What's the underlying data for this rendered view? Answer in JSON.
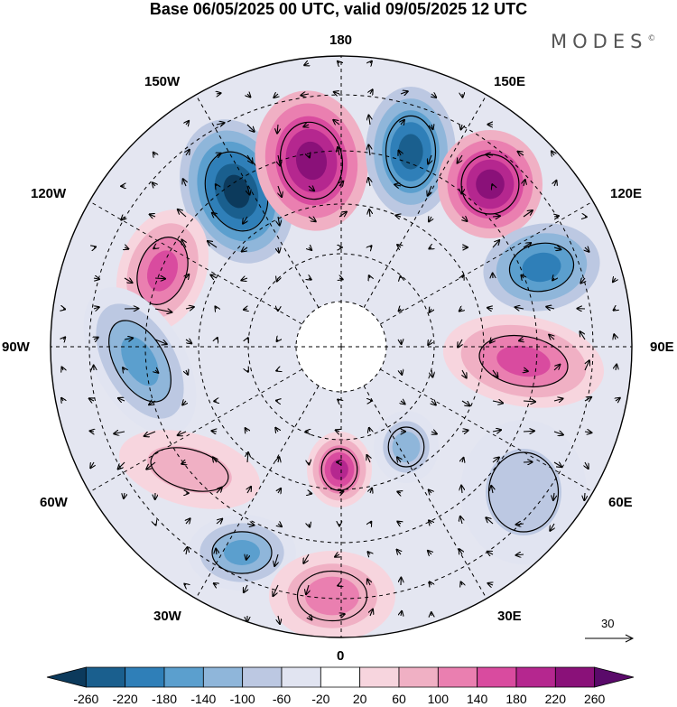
{
  "title": "Base 06/05/2025 00 UTC, valid 09/05/2025 12 UTC",
  "logo": "MODES",
  "logo_mark": "©",
  "longitude_labels": {
    "n180": "180",
    "w150": "150W",
    "e150": "150E",
    "w120": "120W",
    "e120": "120E",
    "w90": "90W",
    "e90": "90E",
    "w60": "60W",
    "e60": "60E",
    "w30": "30W",
    "e30": "30E",
    "s0": "0"
  },
  "reference_vector": "30",
  "colorbar": {
    "labels": [
      "-260",
      "-220",
      "-180",
      "-140",
      "-100",
      "-60",
      "-20",
      "20",
      "60",
      "100",
      "140",
      "180",
      "220",
      "260"
    ],
    "colors": [
      "#0c3a5c",
      "#1a5f8e",
      "#2f7fb8",
      "#5b9fce",
      "#8fb6da",
      "#bcc8e2",
      "#e1e4f1",
      "#ffffff",
      "#f7d5de",
      "#f0b0c4",
      "#ea7fb0",
      "#d94b9f",
      "#b5278f",
      "#8a1179",
      "#5a0a6a"
    ]
  },
  "map": {
    "projection": "north-polar-stereographic",
    "field": "height anomaly with wind vectors",
    "anomalies": [
      {
        "sign": "negative",
        "strength": "strong",
        "region": "north pacific near 140W"
      },
      {
        "sign": "positive",
        "strength": "strong",
        "region": "near 170W"
      },
      {
        "sign": "negative",
        "strength": "strong",
        "region": "near 170E"
      },
      {
        "sign": "positive",
        "strength": "strong",
        "region": "near 140E"
      },
      {
        "sign": "negative",
        "strength": "moderate",
        "region": "near 110E"
      },
      {
        "sign": "positive",
        "strength": "moderate",
        "region": "near 90E"
      },
      {
        "sign": "positive",
        "strength": "moderate",
        "region": "north america near 110W"
      },
      {
        "sign": "negative",
        "strength": "moderate",
        "region": "near 90W"
      },
      {
        "sign": "positive",
        "strength": "moderate",
        "region": "greenland"
      },
      {
        "sign": "negative",
        "strength": "moderate",
        "region": "north atlantic near 40W"
      },
      {
        "sign": "positive",
        "strength": "weak",
        "region": "europe near 0"
      }
    ]
  }
}
